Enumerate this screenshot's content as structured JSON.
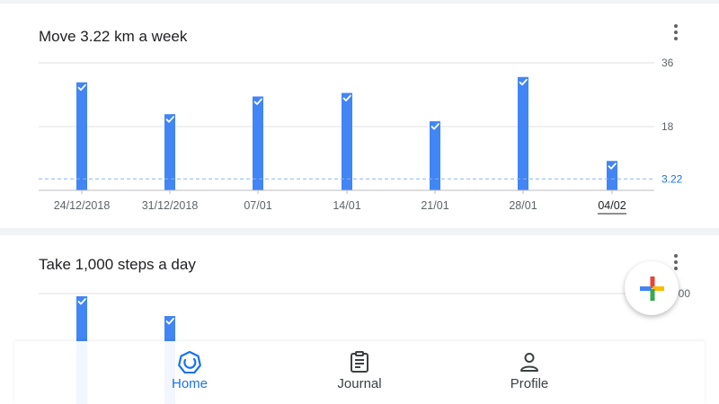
{
  "colors": {
    "bar": "#4285f4",
    "goal_line": "#8ab4f8",
    "goal_label": "#1a73e8",
    "grid": "#e0e0e0",
    "active_nav": "#1a73e8",
    "icon": "#5f6368"
  },
  "cards": [
    {
      "title": "Move 3.22 km a week",
      "menu_icon": "more-vert-icon"
    },
    {
      "title": "Take 1,000 steps a day",
      "menu_icon": "more-vert-icon"
    }
  ],
  "chart_data": [
    {
      "type": "bar",
      "title": "Move 3.22 km a week",
      "categories": [
        "24/12/2018",
        "31/12/2018",
        "07/01",
        "14/01",
        "21/01",
        "28/01",
        "04/02"
      ],
      "values": [
        30.5,
        21.5,
        26.5,
        27.5,
        19.5,
        32.0,
        8.3
      ],
      "goal_met": [
        true,
        true,
        true,
        true,
        true,
        true,
        true
      ],
      "highlighted_category": "04/02",
      "goal": 3.22,
      "goal_label": "3.22",
      "y_ticks": [
        18,
        36
      ],
      "ylim": [
        0,
        36
      ],
      "grid": true
    },
    {
      "type": "bar",
      "title": "Take 1,000 steps a day",
      "visible_tick_label": "000",
      "values": [
        null,
        null,
        null,
        null,
        null,
        null,
        null
      ],
      "goal_met": [
        true,
        true,
        true,
        true,
        true,
        true,
        true
      ],
      "grid": true
    }
  ],
  "fab": {
    "icon": "add-icon"
  },
  "nav": {
    "items": [
      {
        "label": "Home",
        "icon": "home-ring-icon",
        "active": true
      },
      {
        "label": "Journal",
        "icon": "clipboard-icon",
        "active": false
      },
      {
        "label": "Profile",
        "icon": "person-icon",
        "active": false
      }
    ]
  }
}
